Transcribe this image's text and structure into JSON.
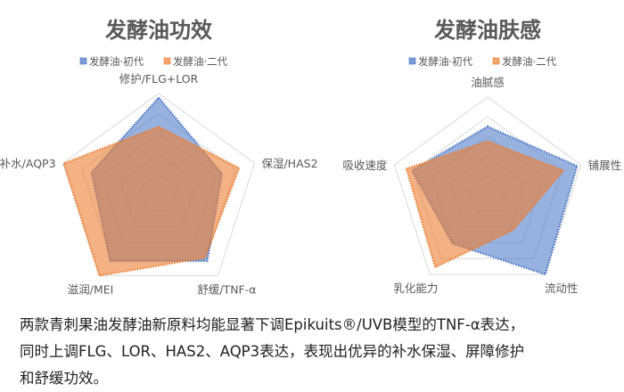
{
  "colors": {
    "series1": "#4472c4",
    "series2": "#ed7d31",
    "grid": "#d9d9d9",
    "title": "#595959",
    "label": "#595959"
  },
  "chart_data": [
    {
      "type": "radar",
      "title": "发酵油功效",
      "legend_position": "top",
      "grid": true,
      "rlim": [
        0,
        1
      ],
      "categories": [
        "修护/FLG+LOR",
        "保湿/HAS2",
        "舒缓/TNF-α",
        "滋润/MEI",
        "补水/AQP3"
      ],
      "series": [
        {
          "name": "发酵油·初代",
          "values": [
            0.96,
            0.66,
            0.82,
            0.82,
            0.7
          ]
        },
        {
          "name": "发酵油·二代",
          "values": [
            0.67,
            0.84,
            0.78,
            1.0,
            0.99
          ]
        }
      ]
    },
    {
      "type": "radar",
      "title": "发酵油肤感",
      "legend_position": "top",
      "grid": true,
      "rlim": [
        0,
        1
      ],
      "categories": [
        "油腻感",
        "铺展性",
        "流动性",
        "乳化能力",
        "吸收速度"
      ],
      "series": [
        {
          "name": "发酵油·初代",
          "values": [
            0.7,
            0.96,
            1.0,
            0.61,
            0.81
          ]
        },
        {
          "name": "发酵油·二代",
          "values": [
            0.55,
            0.81,
            0.44,
            0.91,
            0.87
          ]
        }
      ]
    }
  ],
  "caption": {
    "lines": [
      "两款青刺果油发酵油新原料均能显著下调Epikuits®/UVB模型的TNF-α表达，",
      "同时上调FLG、LOR、HAS2、AQP3表达，表现出优异的补水保湿、屏障修护",
      "和舒缓功效。"
    ]
  }
}
